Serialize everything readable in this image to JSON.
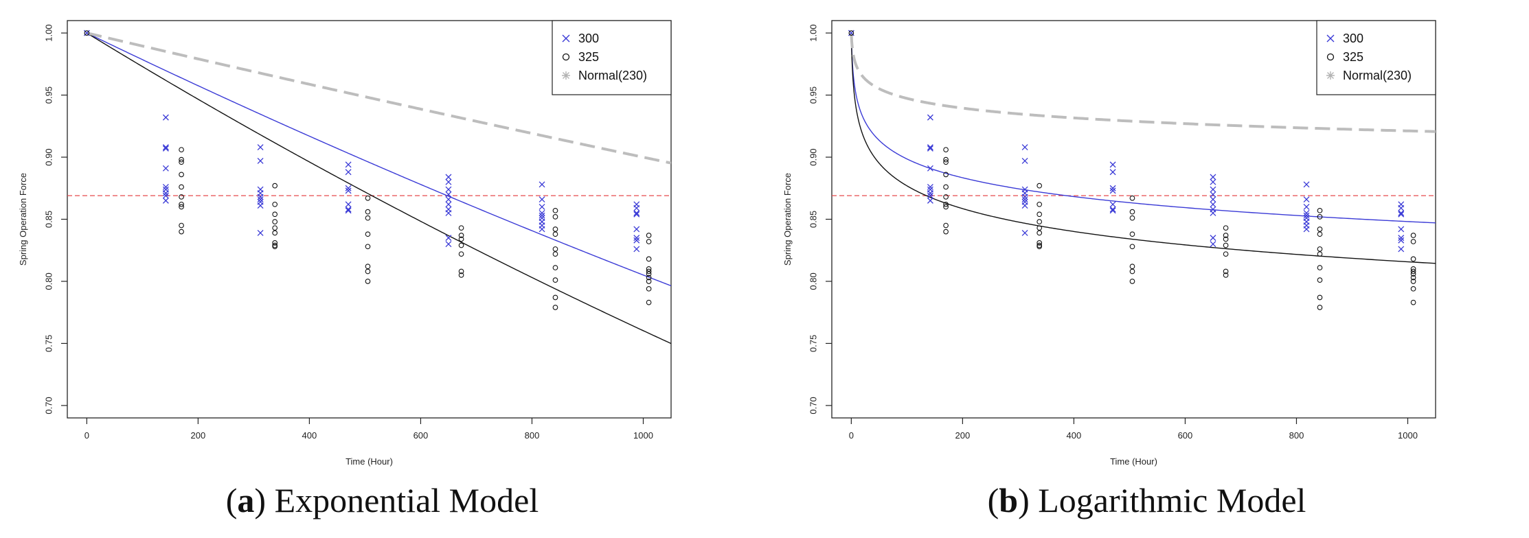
{
  "chart_data": [
    {
      "type": "scatter",
      "panel_letter": "a",
      "caption_suffix": ") Exponential Model",
      "xlabel": "Time (Hour)",
      "ylabel": "Spring Operation Force",
      "xlim": [
        -35,
        1050
      ],
      "ylim": [
        0.69,
        1.01
      ],
      "xticks": [
        0,
        200,
        400,
        600,
        800,
        1000
      ],
      "yticks": [
        0.7,
        0.75,
        0.8,
        0.85,
        0.9,
        0.95,
        1.0
      ],
      "threshold": 0.869,
      "legend": [
        {
          "label": "300",
          "marker": "x",
          "color": "#3a3ad6"
        },
        {
          "label": "325",
          "marker": "o",
          "color": "#111111"
        },
        {
          "label": "Normal(230)",
          "marker": "*",
          "color": "#b3b3b3"
        }
      ],
      "points_300": [
        {
          "x": 0,
          "y": [
            1.0
          ]
        },
        {
          "x": 142,
          "y": [
            0.932,
            0.908,
            0.907,
            0.891,
            0.876,
            0.874,
            0.871,
            0.869,
            0.865
          ]
        },
        {
          "x": 312,
          "y": [
            0.908,
            0.897,
            0.874,
            0.871,
            0.868,
            0.866,
            0.864,
            0.861,
            0.839
          ]
        },
        {
          "x": 470,
          "y": [
            0.894,
            0.888,
            0.875,
            0.873,
            0.862,
            0.858,
            0.857
          ]
        },
        {
          "x": 650,
          "y": [
            0.884,
            0.88,
            0.874,
            0.87,
            0.866,
            0.862,
            0.858,
            0.855,
            0.835,
            0.83
          ]
        },
        {
          "x": 818,
          "y": [
            0.878,
            0.866,
            0.86,
            0.855,
            0.853,
            0.851,
            0.848,
            0.845,
            0.842
          ]
        },
        {
          "x": 988,
          "y": [
            0.862,
            0.859,
            0.855,
            0.854,
            0.842,
            0.835,
            0.833,
            0.826
          ]
        }
      ],
      "points_325": [
        {
          "x": 0,
          "y": [
            1.0
          ]
        },
        {
          "x": 170,
          "y": [
            0.906,
            0.898,
            0.896,
            0.886,
            0.876,
            0.868,
            0.862,
            0.86,
            0.845,
            0.84
          ]
        },
        {
          "x": 338,
          "y": [
            0.877,
            0.862,
            0.854,
            0.848,
            0.843,
            0.839,
            0.831,
            0.829,
            0.828
          ]
        },
        {
          "x": 505,
          "y": [
            0.867,
            0.856,
            0.851,
            0.838,
            0.828,
            0.812,
            0.808,
            0.8
          ]
        },
        {
          "x": 673,
          "y": [
            0.843,
            0.837,
            0.834,
            0.829,
            0.822,
            0.808,
            0.805
          ]
        },
        {
          "x": 842,
          "y": [
            0.857,
            0.852,
            0.842,
            0.838,
            0.826,
            0.822,
            0.811,
            0.801,
            0.787,
            0.779
          ]
        },
        {
          "x": 1010,
          "y": [
            0.837,
            0.832,
            0.818,
            0.81,
            0.808,
            0.806,
            0.803,
            0.8,
            0.794,
            0.783
          ]
        }
      ],
      "curves": [
        {
          "name": "300",
          "model": "exp",
          "rate": 0.0002168,
          "color": "#3a3ad6",
          "dashed": false
        },
        {
          "name": "325",
          "model": "exp",
          "rate": 0.0002741,
          "color": "#111111",
          "dashed": false
        },
        {
          "name": "Normal(230)",
          "model": "exp",
          "rate": 0.0001054,
          "color": "#bdbdbd",
          "dashed": true
        }
      ]
    },
    {
      "type": "scatter",
      "panel_letter": "b",
      "caption_suffix": ") Logarithmic Model",
      "xlabel": "Time (Hour)",
      "ylabel": "Spring Operation Force",
      "xlim": [
        -35,
        1050
      ],
      "ylim": [
        0.69,
        1.01
      ],
      "xticks": [
        0,
        200,
        400,
        600,
        800,
        1000
      ],
      "yticks": [
        0.7,
        0.75,
        0.8,
        0.85,
        0.9,
        0.95,
        1.0
      ],
      "threshold": 0.869,
      "legend": [
        {
          "label": "300",
          "marker": "x",
          "color": "#3a3ad6"
        },
        {
          "label": "325",
          "marker": "o",
          "color": "#111111"
        },
        {
          "label": "Normal(230)",
          "marker": "*",
          "color": "#b3b3b3"
        }
      ],
      "points_300": [
        {
          "x": 0,
          "y": [
            1.0
          ]
        },
        {
          "x": 142,
          "y": [
            0.932,
            0.908,
            0.907,
            0.891,
            0.876,
            0.874,
            0.871,
            0.869,
            0.865
          ]
        },
        {
          "x": 312,
          "y": [
            0.908,
            0.897,
            0.874,
            0.871,
            0.868,
            0.866,
            0.864,
            0.861,
            0.839
          ]
        },
        {
          "x": 470,
          "y": [
            0.894,
            0.888,
            0.875,
            0.873,
            0.862,
            0.858,
            0.857
          ]
        },
        {
          "x": 650,
          "y": [
            0.884,
            0.88,
            0.874,
            0.87,
            0.866,
            0.862,
            0.858,
            0.855,
            0.835,
            0.83
          ]
        },
        {
          "x": 818,
          "y": [
            0.878,
            0.866,
            0.86,
            0.855,
            0.853,
            0.851,
            0.848,
            0.845,
            0.842
          ]
        },
        {
          "x": 988,
          "y": [
            0.862,
            0.859,
            0.855,
            0.854,
            0.842,
            0.835,
            0.833,
            0.826
          ]
        }
      ],
      "points_325": [
        {
          "x": 0,
          "y": [
            1.0
          ]
        },
        {
          "x": 170,
          "y": [
            0.906,
            0.898,
            0.896,
            0.886,
            0.876,
            0.868,
            0.862,
            0.86,
            0.845,
            0.84
          ]
        },
        {
          "x": 338,
          "y": [
            0.877,
            0.862,
            0.854,
            0.848,
            0.843,
            0.839,
            0.831,
            0.829,
            0.828
          ]
        },
        {
          "x": 505,
          "y": [
            0.867,
            0.856,
            0.851,
            0.838,
            0.828,
            0.812,
            0.808,
            0.8
          ]
        },
        {
          "x": 673,
          "y": [
            0.843,
            0.837,
            0.834,
            0.829,
            0.822,
            0.808,
            0.805
          ]
        },
        {
          "x": 842,
          "y": [
            0.857,
            0.852,
            0.842,
            0.838,
            0.826,
            0.822,
            0.811,
            0.801,
            0.787,
            0.779
          ]
        },
        {
          "x": 1010,
          "y": [
            0.837,
            0.832,
            0.818,
            0.81,
            0.808,
            0.806,
            0.803,
            0.8,
            0.794,
            0.783
          ]
        }
      ],
      "curves": [
        {
          "name": "300",
          "model": "log",
          "a": 1.0,
          "b": -0.02198,
          "color": "#3a3ad6",
          "dashed": false
        },
        {
          "name": "325",
          "model": "log",
          "a": 1.0,
          "b": -0.02667,
          "color": "#111111",
          "dashed": false
        },
        {
          "name": "Normal(230)",
          "model": "log",
          "a": 1.0,
          "b": -0.01141,
          "color": "#bdbdbd",
          "dashed": true
        }
      ]
    }
  ]
}
